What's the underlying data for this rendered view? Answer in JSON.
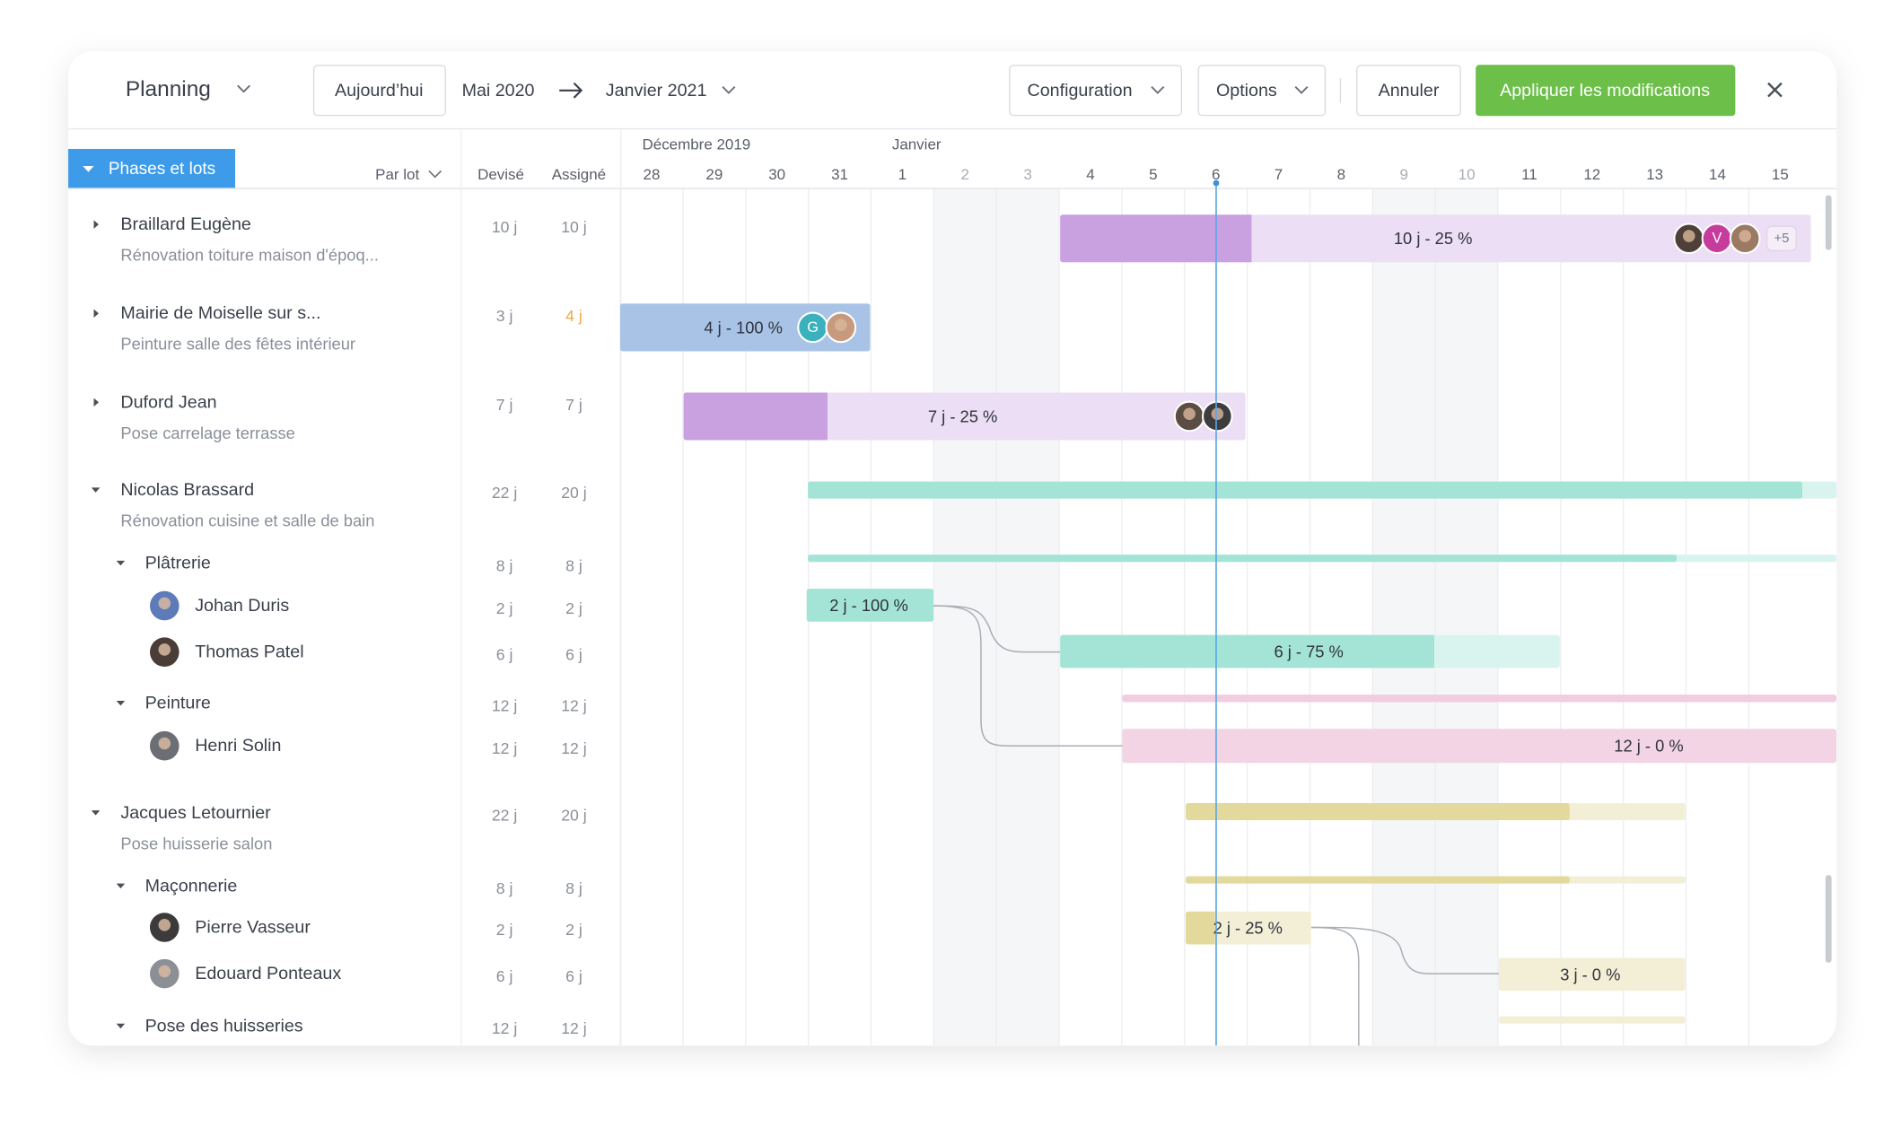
{
  "toolbar": {
    "title": "Planning",
    "today": "Aujourd’hui",
    "from": "Mai 2020",
    "to": "Janvier 2021",
    "configuration": "Configuration",
    "options": "Options",
    "cancel": "Annuler",
    "apply": "Appliquer les modifications"
  },
  "grid_header": {
    "group_tab": "Phases et lots",
    "group_by": "Par lot",
    "quoted": "Devisé",
    "assigned": "Assigné"
  },
  "timeline": {
    "months": [
      "Décembre 2019",
      "Janvier"
    ],
    "days": [
      "28",
      "29",
      "30",
      "31",
      "1",
      "2",
      "3",
      "4",
      "5",
      "6",
      "7",
      "8",
      "9",
      "10",
      "11",
      "12",
      "13",
      "14",
      "15"
    ]
  },
  "rows": [
    {
      "name": "Braillard Eugène",
      "subtitle": "Rénovation toiture maison d'époq...",
      "quoted": "10 j",
      "assigned": "10 j",
      "bar_label": "10 j - 25 %",
      "avatar_labels": [
        "V",
        "+5"
      ]
    },
    {
      "name": "Mairie de Moiselle sur s...",
      "subtitle": "Peinture salle des fêtes intérieur",
      "quoted": "3 j",
      "assigned": "4 j",
      "bar_label": "4 j - 100 %",
      "avatar_labels": [
        "G"
      ]
    },
    {
      "name": "Duford Jean",
      "subtitle": "Pose carrelage terrasse",
      "quoted": "7 j",
      "assigned": "7 j",
      "bar_label": "7 j - 25 %"
    },
    {
      "name": "Nicolas Brassard",
      "subtitle": "Rénovation cuisine et salle de bain",
      "quoted": "22 j",
      "assigned": "20 j"
    },
    {
      "name": "Plâtrerie",
      "quoted": "8 j",
      "assigned": "8 j"
    },
    {
      "name": "Johan Duris",
      "quoted": "2 j",
      "assigned": "2 j",
      "bar_label": "2 j - 100 %"
    },
    {
      "name": "Thomas Patel",
      "quoted": "6 j",
      "assigned": "6 j",
      "bar_label": "6 j - 75 %"
    },
    {
      "name": "Peinture",
      "quoted": "12 j",
      "assigned": "12 j"
    },
    {
      "name": "Henri Solin",
      "quoted": "12 j",
      "assigned": "12 j",
      "bar_label": "12 j - 0 %"
    },
    {
      "name": "Jacques Letournier",
      "subtitle": "Pose huisserie salon",
      "quoted": "22 j",
      "assigned": "20 j"
    },
    {
      "name": "Maçonnerie",
      "quoted": "8 j",
      "assigned": "8 j"
    },
    {
      "name": "Pierre Vasseur",
      "quoted": "2 j",
      "assigned": "2 j",
      "bar_label": "2 j - 25 %"
    },
    {
      "name": "Edouard Ponteaux",
      "quoted": "6 j",
      "assigned": "6 j",
      "bar_label": "3 j - 0 %"
    },
    {
      "name": "Pose des huisseries",
      "quoted": "12 j",
      "assigned": "12 j"
    }
  ]
}
